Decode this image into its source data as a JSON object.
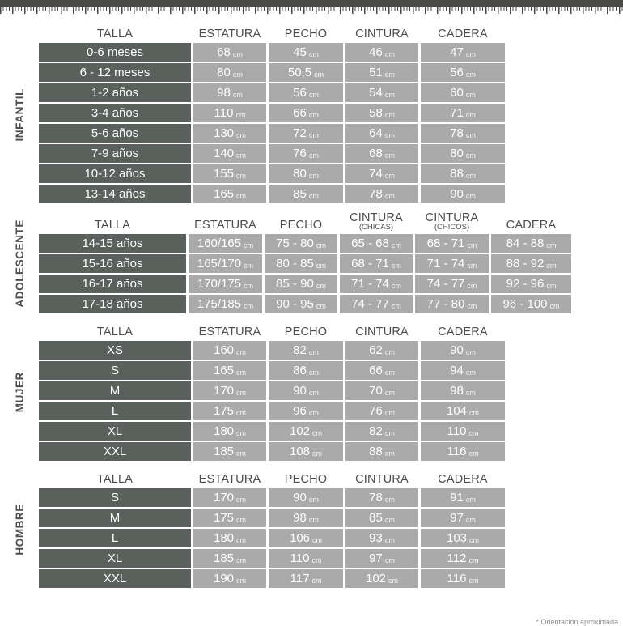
{
  "unit": "cm",
  "colors": {
    "tape_strip": "#4a4a48",
    "size_cell_dark": "#5a605c",
    "value_cell_light": "#a9aaa9",
    "header_text": "#4b4b4b"
  },
  "footnote": "* Orientación aproximada",
  "sections": [
    {
      "id": "infantil",
      "label": "INFANTIL",
      "headers": [
        {
          "label": "TALLA"
        },
        {
          "label": "ESTATURA"
        },
        {
          "label": "PECHO"
        },
        {
          "label": "CINTURA"
        },
        {
          "label": "CADERA"
        }
      ],
      "rows": [
        {
          "talla": "0-6 meses",
          "values": [
            "68",
            "45",
            "46",
            "47"
          ]
        },
        {
          "talla": "6 - 12 meses",
          "values": [
            "80",
            "50,5",
            "51",
            "56"
          ]
        },
        {
          "talla": "1-2 años",
          "values": [
            "98",
            "56",
            "54",
            "60"
          ]
        },
        {
          "talla": "3-4 años",
          "values": [
            "110",
            "66",
            "58",
            "71"
          ]
        },
        {
          "talla": "5-6 años",
          "values": [
            "130",
            "72",
            "64",
            "78"
          ]
        },
        {
          "talla": "7-9 años",
          "values": [
            "140",
            "76",
            "68",
            "80"
          ]
        },
        {
          "talla": "10-12 años",
          "values": [
            "155",
            "80",
            "74",
            "88"
          ]
        },
        {
          "talla": "13-14 años",
          "values": [
            "165",
            "85",
            "78",
            "90"
          ]
        }
      ]
    },
    {
      "id": "adolescente",
      "label": "ADOLESCENTE",
      "headers": [
        {
          "label": "TALLA"
        },
        {
          "label": "ESTATURA"
        },
        {
          "label": "PECHO"
        },
        {
          "label": "CINTURA",
          "sub": "(CHICAS)"
        },
        {
          "label": "CINTURA",
          "sub": "(CHICOS)"
        },
        {
          "label": "CADERA"
        }
      ],
      "rows": [
        {
          "talla": "14-15 años",
          "values": [
            "160/165",
            "75 - 80",
            "65 - 68",
            "68 - 71",
            "84 - 88"
          ]
        },
        {
          "talla": "15-16 años",
          "values": [
            "165/170",
            "80 - 85",
            "68 - 71",
            "71 - 74",
            "88 - 92"
          ]
        },
        {
          "talla": "16-17 años",
          "values": [
            "170/175",
            "85 - 90",
            "71 - 74",
            "74 - 77",
            "92 - 96"
          ]
        },
        {
          "talla": "17-18 años",
          "values": [
            "175/185",
            "90 - 95",
            "74 - 77",
            "77 - 80",
            "96 - 100"
          ]
        }
      ]
    },
    {
      "id": "mujer",
      "label": "MUJER",
      "headers": [
        {
          "label": "TALLA"
        },
        {
          "label": "ESTATURA"
        },
        {
          "label": "PECHO"
        },
        {
          "label": "CINTURA"
        },
        {
          "label": "CADERA"
        }
      ],
      "rows": [
        {
          "talla": "XS",
          "values": [
            "160",
            "82",
            "62",
            "90"
          ]
        },
        {
          "talla": "S",
          "values": [
            "165",
            "86",
            "66",
            "94"
          ]
        },
        {
          "talla": "M",
          "values": [
            "170",
            "90",
            "70",
            "98"
          ]
        },
        {
          "talla": "L",
          "values": [
            "175",
            "96",
            "76",
            "104"
          ]
        },
        {
          "talla": "XL",
          "values": [
            "180",
            "102",
            "82",
            "110"
          ]
        },
        {
          "talla": "XXL",
          "values": [
            "185",
            "108",
            "88",
            "116"
          ]
        }
      ]
    },
    {
      "id": "hombre",
      "label": "HOMBRE",
      "headers": [
        {
          "label": "TALLA"
        },
        {
          "label": "ESTATURA"
        },
        {
          "label": "PECHO"
        },
        {
          "label": "CINTURA"
        },
        {
          "label": "CADERA"
        }
      ],
      "rows": [
        {
          "talla": "S",
          "values": [
            "170",
            "90",
            "78",
            "91"
          ]
        },
        {
          "talla": "M",
          "values": [
            "175",
            "98",
            "85",
            "97"
          ]
        },
        {
          "talla": "L",
          "values": [
            "180",
            "106",
            "93",
            "103"
          ]
        },
        {
          "talla": "XL",
          "values": [
            "185",
            "110",
            "97",
            "112"
          ]
        },
        {
          "talla": "XXL",
          "values": [
            "190",
            "117",
            "102",
            "116"
          ]
        }
      ]
    }
  ]
}
